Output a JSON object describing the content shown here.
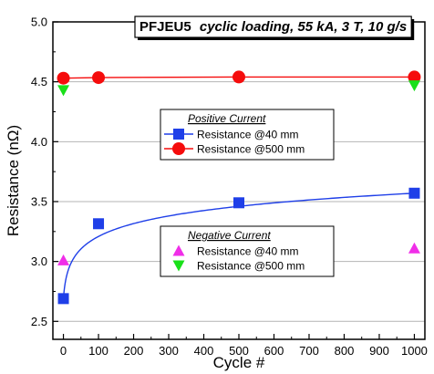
{
  "chart_data": {
    "type": "scatter",
    "title_prefix": "PFJEU5",
    "title_rest": "cyclic loading, 55 kA, 3 T, 10 g/s",
    "xlabel": "Cycle #",
    "ylabel": "Resistance (nΩ)",
    "xlim": [
      -30,
      1030
    ],
    "ylim": [
      2.35,
      5.0
    ],
    "x_ticks": [
      0,
      100,
      200,
      300,
      400,
      500,
      600,
      700,
      800,
      900,
      1000
    ],
    "y_ticks": [
      2.5,
      3.0,
      3.5,
      4.0,
      4.5,
      5.0
    ],
    "y_tick_labels": [
      "2.5",
      "3.0",
      "3.5",
      "4.0",
      "4.5",
      "5.0"
    ],
    "grid": "horizontal",
    "legend_groups": [
      {
        "heading": "Positive Current",
        "series_indices": [
          0,
          1
        ]
      },
      {
        "heading": "Negative Current",
        "series_indices": [
          2,
          3
        ]
      }
    ],
    "series": [
      {
        "name": "Resistance @40 mm",
        "group": "Positive Current",
        "marker": "square",
        "color": "#1f3fe8",
        "x": [
          0,
          100,
          500,
          1000
        ],
        "y": [
          2.69,
          3.315,
          3.49,
          3.57
        ],
        "fit": "curve"
      },
      {
        "name": "Resistance @500 mm",
        "group": "Positive Current",
        "marker": "circle",
        "color": "#f50c0c",
        "x": [
          0,
          100,
          500,
          1000
        ],
        "y": [
          4.53,
          4.535,
          4.54,
          4.54
        ],
        "fit": "line"
      },
      {
        "name": "Resistance @40 mm",
        "group": "Negative Current",
        "marker": "triangle-up",
        "color": "#f02ee8",
        "x": [
          0,
          1000
        ],
        "y": [
          3.01,
          3.11
        ]
      },
      {
        "name": "Resistance @500 mm",
        "group": "Negative Current",
        "marker": "triangle-down",
        "color": "#19e019",
        "x": [
          0,
          1000
        ],
        "y": [
          4.43,
          4.47
        ]
      }
    ]
  }
}
